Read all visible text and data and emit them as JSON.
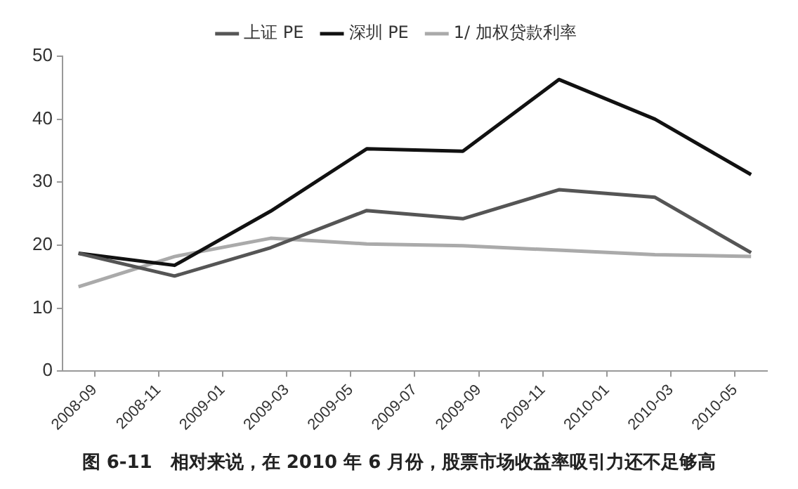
{
  "chart_data": {
    "type": "line",
    "x": [
      "2008-09",
      "2008-12",
      "2009-03",
      "2009-06",
      "2009-09",
      "2009-12",
      "2010-03",
      "2010-06"
    ],
    "series": [
      {
        "name": "上证 PE",
        "color": "#555555",
        "values": [
          18.7,
          15.1,
          19.6,
          25.5,
          24.2,
          28.8,
          27.6,
          18.8
        ]
      },
      {
        "name": "深圳 PE",
        "color": "#111111",
        "values": [
          18.7,
          16.8,
          25.4,
          35.3,
          34.9,
          46.3,
          40.0,
          31.2
        ]
      },
      {
        "name": "1/ 加权贷款利率",
        "color": "#aaaaaa",
        "values": [
          13.4,
          18.2,
          21.1,
          20.2,
          19.9,
          19.2,
          18.5,
          18.2
        ]
      }
    ],
    "xlim": [
      "2008-08-16",
      "2010-06-16"
    ],
    "xticks": [
      {
        "value": "2008-09-16",
        "label": "2008-09"
      },
      {
        "value": "2008-11-16",
        "label": "2008-11"
      },
      {
        "value": "2009-01-16",
        "label": "2009-01"
      },
      {
        "value": "2009-03-16",
        "label": "2009-03"
      },
      {
        "value": "2009-05-16",
        "label": "2009-05"
      },
      {
        "value": "2009-07-16",
        "label": "2009-07"
      },
      {
        "value": "2009-09-16",
        "label": "2009-09"
      },
      {
        "value": "2009-11-16",
        "label": "2009-11"
      },
      {
        "value": "2010-01-16",
        "label": "2010-01"
      },
      {
        "value": "2010-03-16",
        "label": "2010-03"
      },
      {
        "value": "2010-05-16",
        "label": "2010-05"
      }
    ],
    "ylim": [
      0,
      50
    ],
    "yticks": [
      0,
      10,
      20,
      30,
      40,
      50
    ],
    "legend": "top",
    "marker": "none",
    "line_style": "solid",
    "annotations": [
      "图 6-11　相对来说，在 2010 年 6 月份，股票市场收益率吸引力还不足够高"
    ]
  }
}
